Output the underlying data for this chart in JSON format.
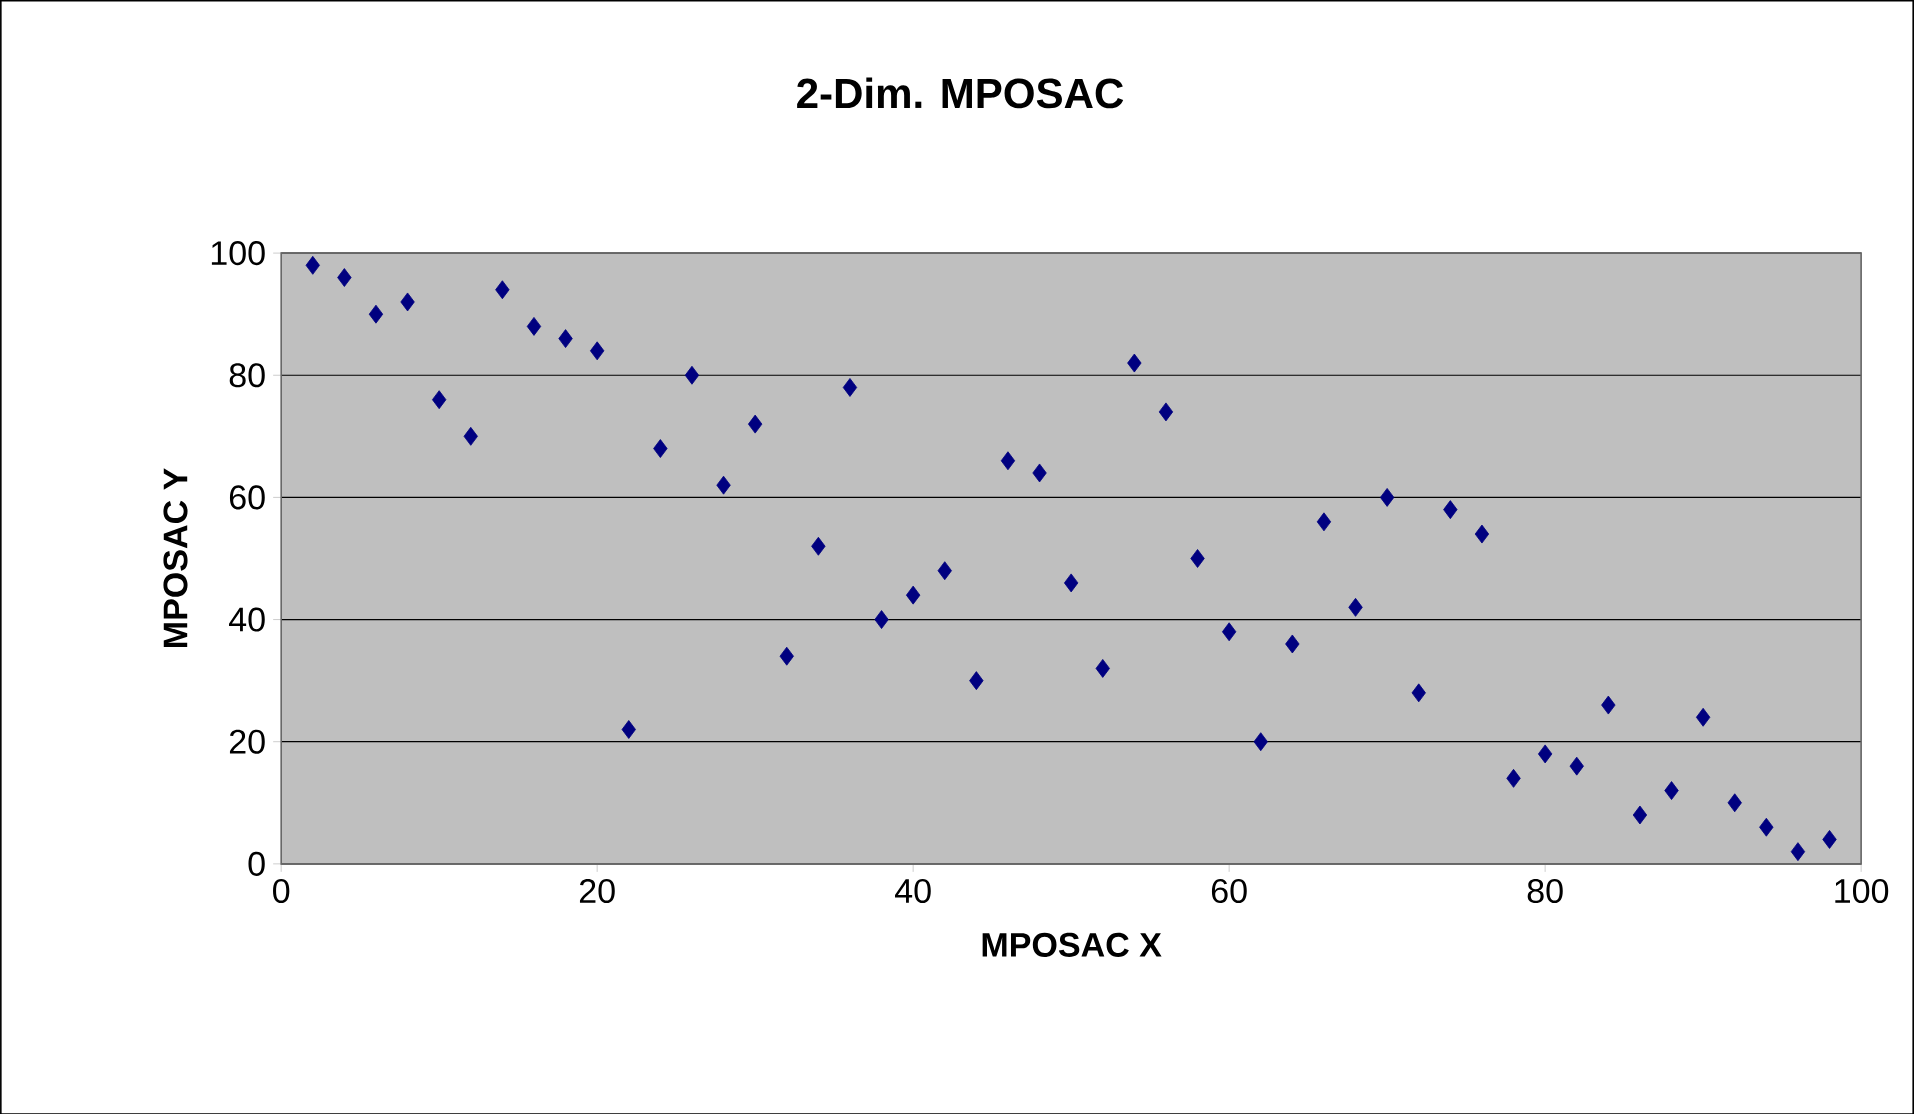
{
  "chart_data": {
    "type": "scatter",
    "title": "2-Dim. MPOSAC",
    "xlabel": "MPOSAC X",
    "ylabel": "MPOSAC Y",
    "x": [
      2,
      4,
      6,
      8,
      10,
      12,
      14,
      16,
      18,
      20,
      22,
      24,
      26,
      28,
      30,
      32,
      34,
      36,
      38,
      40,
      42,
      44,
      46,
      48,
      50,
      52,
      54,
      56,
      58,
      60,
      62,
      64,
      66,
      68,
      70,
      72,
      74,
      76,
      78,
      80,
      82,
      84,
      86,
      88,
      90,
      92,
      94,
      96,
      98
    ],
    "values": [
      98,
      96,
      90,
      92,
      76,
      70,
      94,
      88,
      86,
      84,
      22,
      68,
      80,
      62,
      72,
      34,
      52,
      78,
      40,
      44,
      48,
      30,
      66,
      64,
      46,
      32,
      82,
      74,
      50,
      38,
      20,
      36,
      56,
      42,
      60,
      28,
      58,
      54,
      14,
      18,
      16,
      26,
      8,
      12,
      24,
      10,
      6,
      2,
      4
    ],
    "color": "#000080",
    "marker": "diamond",
    "xlim": [
      0,
      100
    ],
    "ylim": [
      0,
      100
    ],
    "xticks": [
      0,
      20,
      40,
      60,
      80,
      100
    ],
    "yticks": [
      0,
      20,
      40,
      60,
      80,
      100
    ],
    "grid": "y"
  }
}
